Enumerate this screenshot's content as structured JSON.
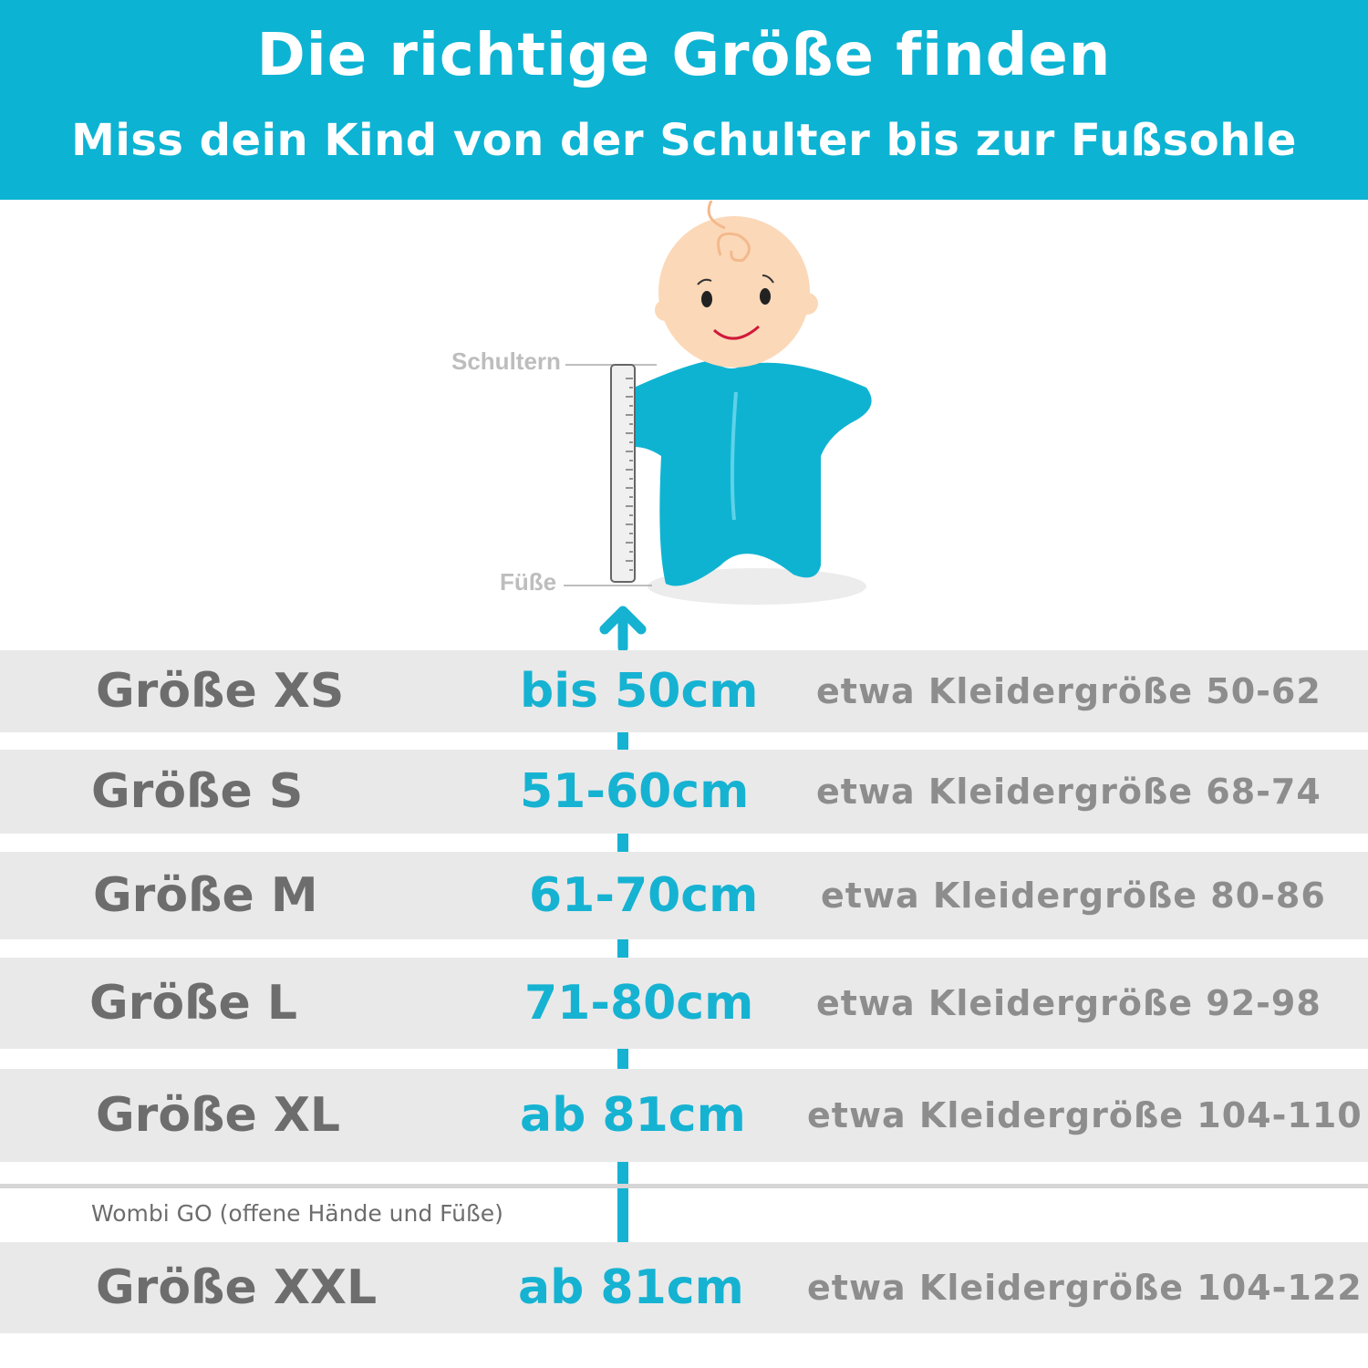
{
  "header": {
    "title": "Die richtige Größe finden",
    "subtitle": "Miss dein Kind von der Schulter bis zur Fußsohle"
  },
  "illustration": {
    "label_shoulders": "Schultern",
    "label_feet": "Füße"
  },
  "colors": {
    "accent": "#0db3d3",
    "row_bg": "#e9e9e9",
    "text_gray": "#6d6d6d"
  },
  "sizes": [
    {
      "size": "Größe XS",
      "range": "bis 50cm",
      "clothing": "etwa Kleidergröße 50-62"
    },
    {
      "size": "Größe S",
      "range": "51-60cm",
      "clothing": "etwa Kleidergröße 68-74"
    },
    {
      "size": "Größe M",
      "range": "61-70cm",
      "clothing": "etwa Kleidergröße 80-86"
    },
    {
      "size": "Größe L",
      "range": "71-80cm",
      "clothing": "etwa Kleidergröße 92-98"
    },
    {
      "size": "Größe XL",
      "range": "ab 81cm",
      "clothing": "etwa Kleidergröße 104-110"
    }
  ],
  "wombi_go": {
    "note": "Wombi GO (offene Hände und Füße)",
    "size": "Größe XXL",
    "range": "ab 81cm",
    "clothing": "etwa Kleidergröße 104-122"
  }
}
